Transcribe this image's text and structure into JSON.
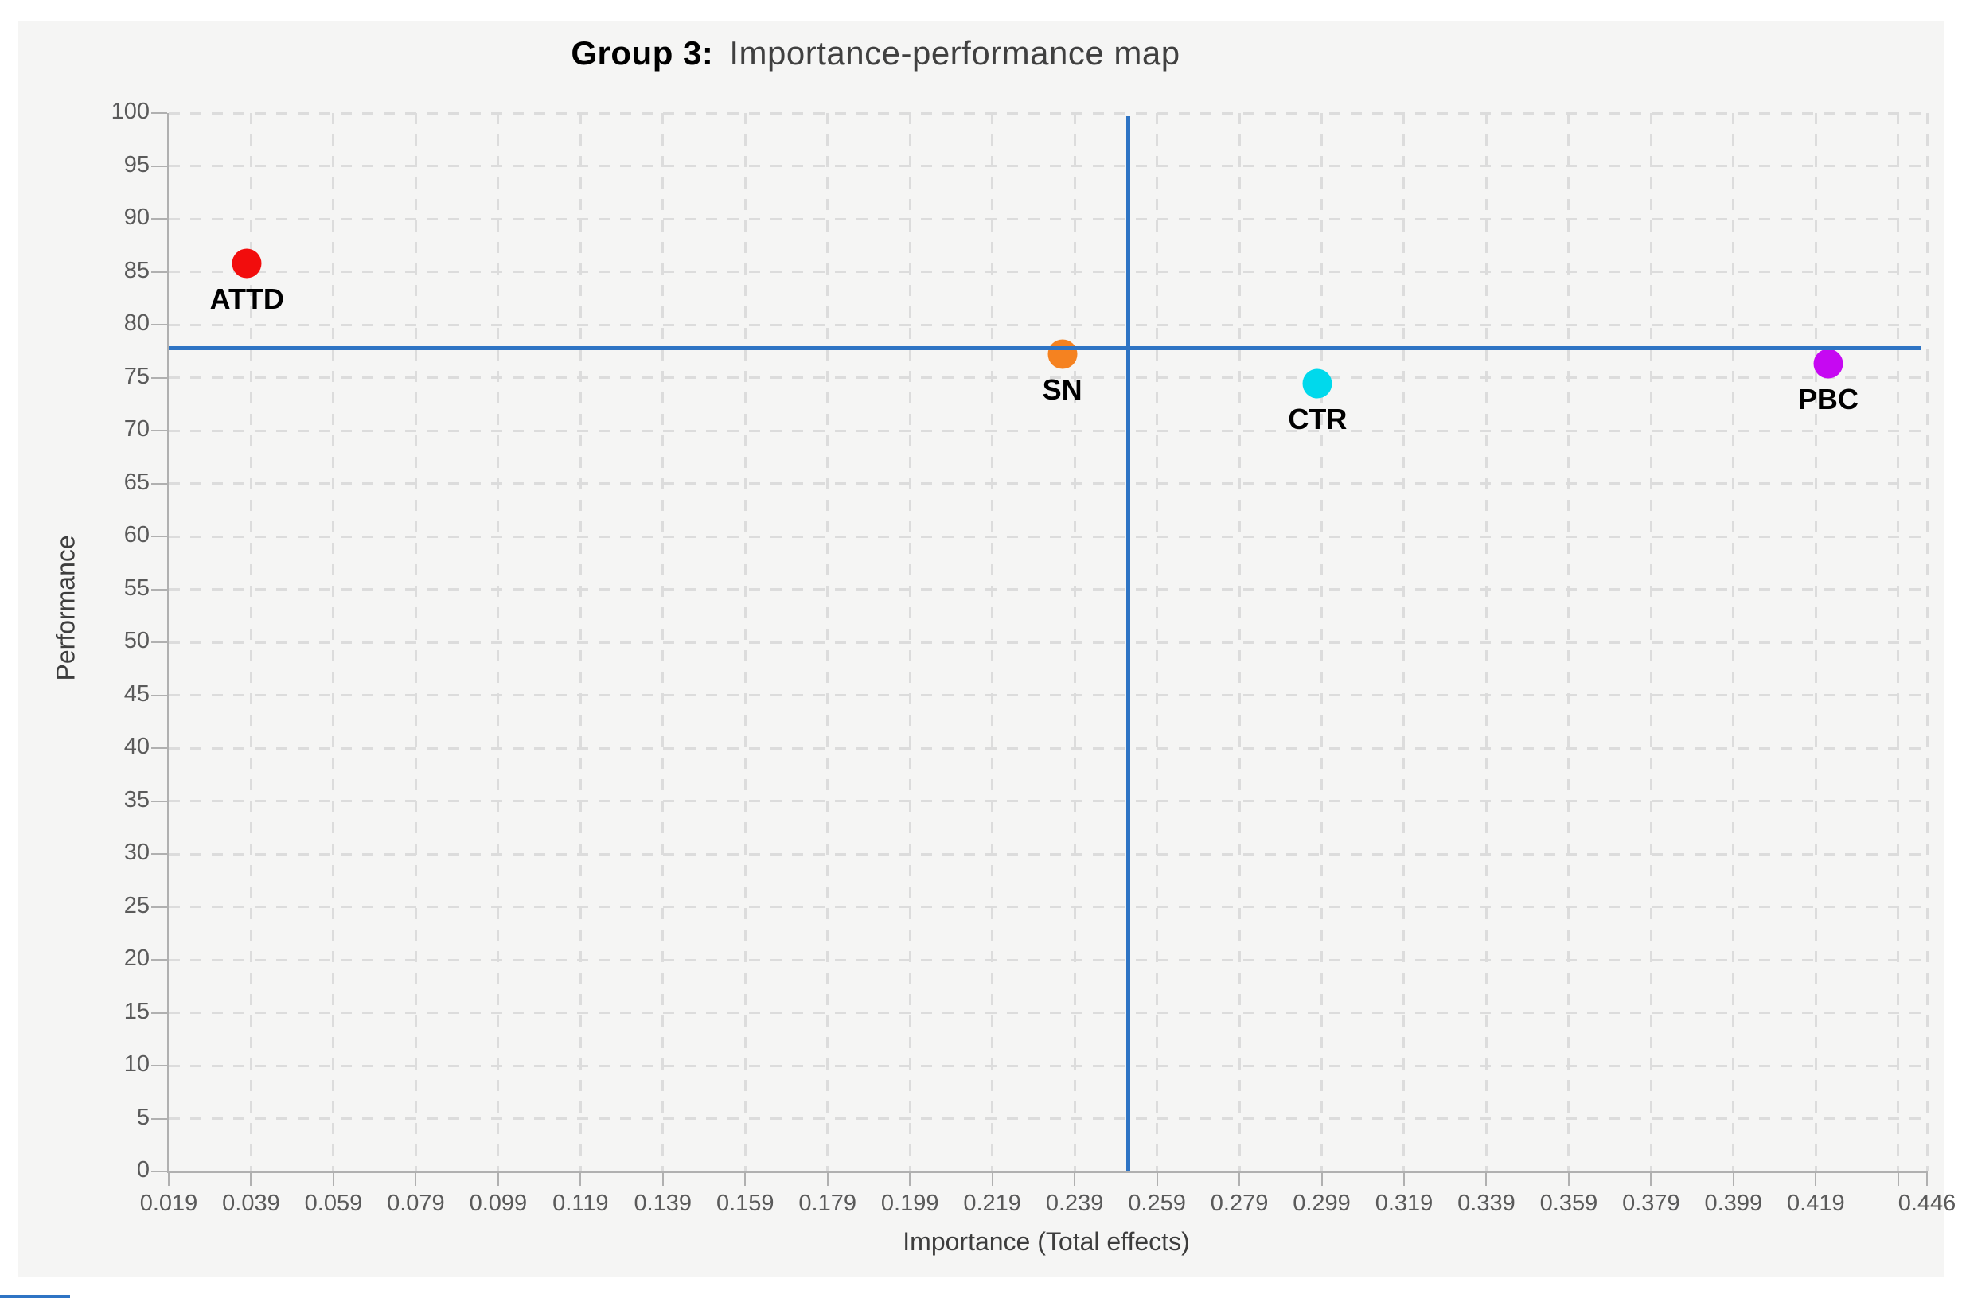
{
  "chart": {
    "title_bold": "Group 3:",
    "title_rest": "Importance-performance map",
    "xlabel": "Importance (Total effects)",
    "ylabel": "Performance"
  },
  "chart_data": {
    "type": "scatter",
    "title": "Group 3: Importance-performance map",
    "xlabel": "Importance (Total effects)",
    "ylabel": "Performance",
    "xlim": [
      0.019,
      0.446
    ],
    "ylim": [
      0,
      100
    ],
    "x_tick_labels": [
      "0.019",
      "0.039",
      "0.059",
      "0.079",
      "0.099",
      "0.119",
      "0.139",
      "0.159",
      "0.179",
      "0.199",
      "0.219",
      "0.239",
      "0.259",
      "0.279",
      "0.299",
      "0.319",
      "0.339",
      "0.359",
      "0.379",
      "0.399",
      "0.419",
      "0.446"
    ],
    "x_grid_unlabeled": [
      0.439
    ],
    "y_ticks": [
      0,
      5,
      10,
      15,
      20,
      25,
      30,
      35,
      40,
      45,
      50,
      55,
      60,
      65,
      70,
      75,
      80,
      85,
      90,
      95,
      100
    ],
    "grid": "dashed",
    "legend": "none",
    "reference_lines": {
      "vertical_x": 0.252,
      "horizontal_y": 77.8,
      "color": "#2e74c4"
    },
    "series": [
      {
        "name": "ATTD",
        "x": 0.038,
        "y": 85.8,
        "color": "#f20d0d"
      },
      {
        "name": "SN",
        "x": 0.236,
        "y": 77.2,
        "color": "#f58220"
      },
      {
        "name": "CTR",
        "x": 0.298,
        "y": 74.4,
        "color": "#00d9ec"
      },
      {
        "name": "PBC",
        "x": 0.422,
        "y": 76.3,
        "color": "#c608f2"
      }
    ]
  }
}
